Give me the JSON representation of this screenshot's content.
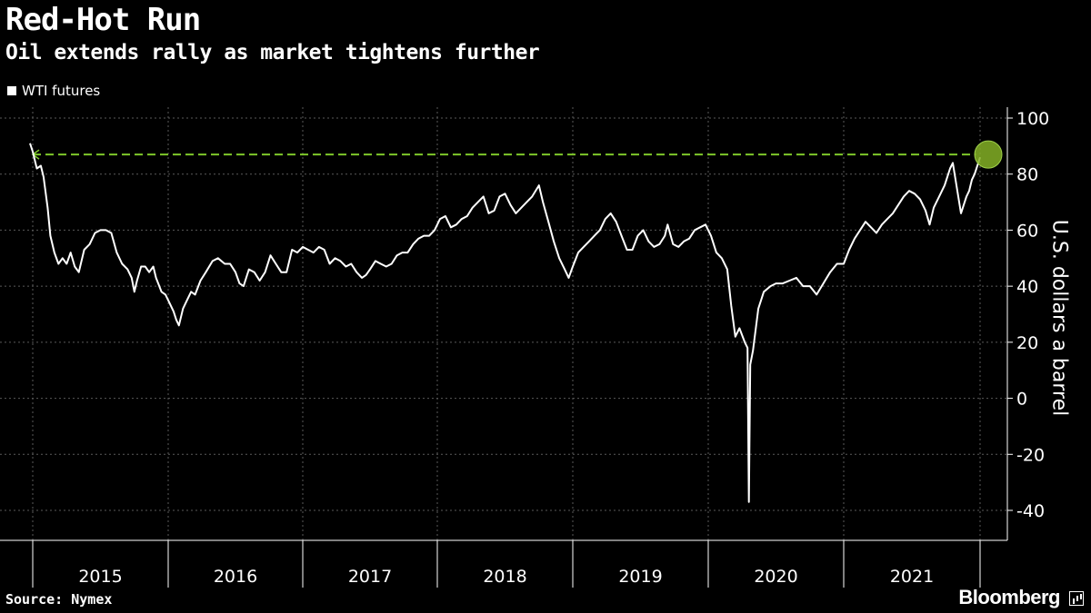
{
  "header": {
    "title": "Red-Hot Run",
    "subtitle": "Oil extends rally as market tightens further"
  },
  "legend": {
    "label": "WTI futures"
  },
  "footer": {
    "source": "Source: Nymex",
    "brand": "Bloomberg"
  },
  "colors": {
    "background": "#000000",
    "series": "#ffffff",
    "highlight": "#84b026",
    "highlight_line": "#7ec82a",
    "grid": "#5a5a5a"
  },
  "chart_data": {
    "type": "line",
    "ylabel": "U.S. dollars a barrel",
    "ylim": [
      -40,
      100
    ],
    "yticks": [
      100,
      80,
      60,
      40,
      20,
      0,
      -20,
      -40
    ],
    "xlim": [
      2014.98,
      2021.85
    ],
    "xtick_labels": [
      "2015",
      "2016",
      "2017",
      "2018",
      "2019",
      "2020",
      "2021"
    ],
    "grid": true,
    "legend_position": "top-left",
    "annotation": {
      "type": "reference-line",
      "value": 87,
      "from": 2015.0,
      "to": 2021.8
    },
    "series": [
      {
        "name": "WTI futures",
        "points": [
          [
            2014.98,
            91
          ],
          [
            2015.0,
            88
          ],
          [
            2015.03,
            82
          ],
          [
            2015.06,
            83
          ],
          [
            2015.08,
            79
          ],
          [
            2015.11,
            68
          ],
          [
            2015.13,
            58
          ],
          [
            2015.16,
            52
          ],
          [
            2015.19,
            48
          ],
          [
            2015.22,
            50
          ],
          [
            2015.25,
            48
          ],
          [
            2015.28,
            52
          ],
          [
            2015.31,
            47
          ],
          [
            2015.34,
            45
          ],
          [
            2015.38,
            53
          ],
          [
            2015.42,
            55
          ],
          [
            2015.46,
            59
          ],
          [
            2015.5,
            60
          ],
          [
            2015.54,
            60
          ],
          [
            2015.58,
            59
          ],
          [
            2015.62,
            52
          ],
          [
            2015.66,
            48
          ],
          [
            2015.7,
            46
          ],
          [
            2015.73,
            43
          ],
          [
            2015.75,
            38
          ],
          [
            2015.77,
            42
          ],
          [
            2015.8,
            47
          ],
          [
            2015.83,
            47
          ],
          [
            2015.86,
            45
          ],
          [
            2015.89,
            47
          ],
          [
            2015.91,
            43
          ],
          [
            2015.95,
            38
          ],
          [
            2015.98,
            37
          ],
          [
            2016.01,
            34
          ],
          [
            2016.04,
            31
          ],
          [
            2016.06,
            28
          ],
          [
            2016.08,
            26
          ],
          [
            2016.11,
            32
          ],
          [
            2016.14,
            35
          ],
          [
            2016.17,
            38
          ],
          [
            2016.2,
            37
          ],
          [
            2016.24,
            42
          ],
          [
            2016.28,
            45
          ],
          [
            2016.33,
            49
          ],
          [
            2016.37,
            50
          ],
          [
            2016.42,
            48
          ],
          [
            2016.46,
            48
          ],
          [
            2016.5,
            45
          ],
          [
            2016.53,
            41
          ],
          [
            2016.56,
            40
          ],
          [
            2016.6,
            46
          ],
          [
            2016.64,
            45
          ],
          [
            2016.68,
            42
          ],
          [
            2016.72,
            45
          ],
          [
            2016.76,
            51
          ],
          [
            2016.8,
            48
          ],
          [
            2016.84,
            45
          ],
          [
            2016.88,
            45
          ],
          [
            2016.92,
            53
          ],
          [
            2016.96,
            52
          ],
          [
            2017.0,
            54
          ],
          [
            2017.04,
            53
          ],
          [
            2017.08,
            52
          ],
          [
            2017.12,
            54
          ],
          [
            2017.16,
            53
          ],
          [
            2017.2,
            48
          ],
          [
            2017.24,
            50
          ],
          [
            2017.28,
            49
          ],
          [
            2017.32,
            47
          ],
          [
            2017.36,
            48
          ],
          [
            2017.4,
            45
          ],
          [
            2017.44,
            43
          ],
          [
            2017.47,
            44
          ],
          [
            2017.5,
            46
          ],
          [
            2017.54,
            49
          ],
          [
            2017.58,
            48
          ],
          [
            2017.62,
            47
          ],
          [
            2017.66,
            48
          ],
          [
            2017.7,
            51
          ],
          [
            2017.74,
            52
          ],
          [
            2017.78,
            52
          ],
          [
            2017.82,
            55
          ],
          [
            2017.86,
            57
          ],
          [
            2017.9,
            58
          ],
          [
            2017.94,
            58
          ],
          [
            2017.98,
            60
          ],
          [
            2018.02,
            64
          ],
          [
            2018.06,
            65
          ],
          [
            2018.1,
            61
          ],
          [
            2018.14,
            62
          ],
          [
            2018.18,
            64
          ],
          [
            2018.22,
            65
          ],
          [
            2018.26,
            68
          ],
          [
            2018.3,
            70
          ],
          [
            2018.34,
            72
          ],
          [
            2018.38,
            66
          ],
          [
            2018.42,
            67
          ],
          [
            2018.46,
            72
          ],
          [
            2018.5,
            73
          ],
          [
            2018.54,
            69
          ],
          [
            2018.58,
            66
          ],
          [
            2018.62,
            68
          ],
          [
            2018.66,
            70
          ],
          [
            2018.7,
            72
          ],
          [
            2018.75,
            76
          ],
          [
            2018.78,
            70
          ],
          [
            2018.82,
            63
          ],
          [
            2018.86,
            56
          ],
          [
            2018.9,
            50
          ],
          [
            2018.94,
            46
          ],
          [
            2018.97,
            43
          ],
          [
            2019.0,
            47
          ],
          [
            2019.04,
            52
          ],
          [
            2019.08,
            54
          ],
          [
            2019.12,
            56
          ],
          [
            2019.16,
            58
          ],
          [
            2019.2,
            60
          ],
          [
            2019.24,
            64
          ],
          [
            2019.28,
            66
          ],
          [
            2019.32,
            63
          ],
          [
            2019.36,
            58
          ],
          [
            2019.4,
            53
          ],
          [
            2019.44,
            53
          ],
          [
            2019.48,
            58
          ],
          [
            2019.52,
            60
          ],
          [
            2019.56,
            56
          ],
          [
            2019.6,
            54
          ],
          [
            2019.64,
            55
          ],
          [
            2019.68,
            58
          ],
          [
            2019.7,
            62
          ],
          [
            2019.74,
            55
          ],
          [
            2019.78,
            54
          ],
          [
            2019.82,
            56
          ],
          [
            2019.86,
            57
          ],
          [
            2019.9,
            60
          ],
          [
            2019.94,
            61
          ],
          [
            2019.98,
            62
          ],
          [
            2020.02,
            58
          ],
          [
            2020.06,
            52
          ],
          [
            2020.1,
            50
          ],
          [
            2020.14,
            46
          ],
          [
            2020.17,
            33
          ],
          [
            2020.2,
            22
          ],
          [
            2020.23,
            25
          ],
          [
            2020.27,
            20
          ],
          [
            2020.29,
            18
          ],
          [
            2020.3,
            -37
          ],
          [
            2020.31,
            12
          ],
          [
            2020.33,
            17
          ],
          [
            2020.37,
            32
          ],
          [
            2020.41,
            38
          ],
          [
            2020.46,
            40
          ],
          [
            2020.5,
            41
          ],
          [
            2020.55,
            41
          ],
          [
            2020.6,
            42
          ],
          [
            2020.65,
            43
          ],
          [
            2020.7,
            40
          ],
          [
            2020.75,
            40
          ],
          [
            2020.8,
            37
          ],
          [
            2020.85,
            41
          ],
          [
            2020.9,
            45
          ],
          [
            2020.95,
            48
          ],
          [
            2021.0,
            48
          ],
          [
            2021.04,
            53
          ],
          [
            2021.08,
            57
          ],
          [
            2021.12,
            60
          ],
          [
            2021.16,
            63
          ],
          [
            2021.2,
            61
          ],
          [
            2021.24,
            59
          ],
          [
            2021.28,
            62
          ],
          [
            2021.32,
            64
          ],
          [
            2021.36,
            66
          ],
          [
            2021.4,
            69
          ],
          [
            2021.44,
            72
          ],
          [
            2021.48,
            74
          ],
          [
            2021.52,
            73
          ],
          [
            2021.56,
            71
          ],
          [
            2021.6,
            67
          ],
          [
            2021.63,
            62
          ],
          [
            2021.66,
            68
          ],
          [
            2021.7,
            72
          ],
          [
            2021.74,
            76
          ],
          [
            2021.78,
            82
          ],
          [
            2021.8,
            84
          ],
          [
            2021.82,
            78
          ],
          [
            2021.84,
            72
          ],
          [
            2021.86,
            66
          ],
          [
            2021.88,
            69
          ],
          [
            2021.9,
            72
          ],
          [
            2021.92,
            74
          ],
          [
            2021.94,
            78
          ],
          [
            2021.96,
            80
          ],
          [
            2021.98,
            83
          ],
          [
            2022.0,
            86
          ]
        ]
      }
    ]
  }
}
